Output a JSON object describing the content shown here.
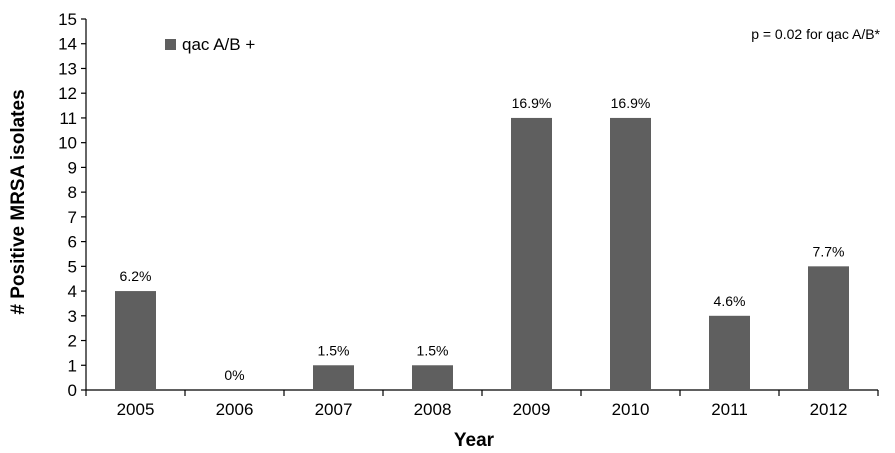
{
  "chart_data": {
    "type": "bar",
    "categories": [
      "2005",
      "2006",
      "2007",
      "2008",
      "2009",
      "2010",
      "2011",
      "2012"
    ],
    "series": [
      {
        "name": "qac A/B +",
        "values": [
          4,
          0,
          1,
          1,
          11,
          11,
          3,
          5
        ],
        "labels": [
          "6.2%",
          "0%",
          "1.5%",
          "1.5%",
          "16.9%",
          "16.9%",
          "4.6%",
          "7.7%"
        ],
        "color": "#5f5f5f"
      }
    ],
    "title": "",
    "xlabel": "Year",
    "ylabel": "# Positive MRSA isolates",
    "ylim": [
      0,
      15
    ],
    "ytick_step": 1,
    "grid": false,
    "legend_position": "top-left",
    "annotation": "p = 0.02 for qac A/B*"
  }
}
